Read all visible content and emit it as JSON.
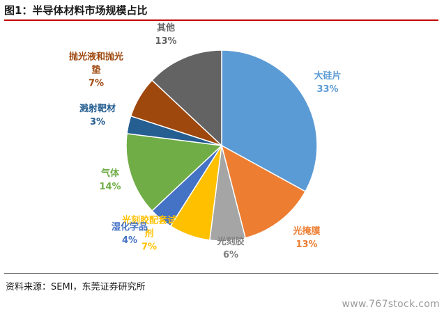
{
  "header": {
    "title": "图1：半导体材料市场规模占比"
  },
  "footer": {
    "source": "资料来源：SEMI，东莞证券研究所"
  },
  "watermark": "www.767stock.com",
  "chart_data": {
    "type": "pie",
    "title": "",
    "slices": [
      {
        "name": "大硅片",
        "label_lines": [
          "大硅片"
        ],
        "percent_label": "33%",
        "value": 33,
        "color": "#5b9bd5"
      },
      {
        "name": "光掩膜",
        "label_lines": [
          "光掩膜"
        ],
        "percent_label": "13%",
        "value": 13,
        "color": "#ed7d31"
      },
      {
        "name": "光刻胶",
        "label_lines": [
          "光刻胶"
        ],
        "percent_label": "6%",
        "value": 6,
        "color": "#a5a5a5"
      },
      {
        "name": "光刻胶配套试剂",
        "label_lines": [
          "光刻胶配套试",
          "剂"
        ],
        "percent_label": "7%",
        "value": 7,
        "color": "#ffc000"
      },
      {
        "name": "湿化学品",
        "label_lines": [
          "湿化学品"
        ],
        "percent_label": "4%",
        "value": 4,
        "color": "#4472c4"
      },
      {
        "name": "气体",
        "label_lines": [
          "气体"
        ],
        "percent_label": "14%",
        "value": 14,
        "color": "#70ad47"
      },
      {
        "name": "溅射靶材",
        "label_lines": [
          "溅射靶材"
        ],
        "percent_label": "3%",
        "value": 3,
        "color": "#255e91"
      },
      {
        "name": "抛光液和抛光垫",
        "label_lines": [
          "抛光液和抛光",
          "垫"
        ],
        "percent_label": "7%",
        "value": 7,
        "color": "#9e480e"
      },
      {
        "name": "其他",
        "label_lines": [
          "其他"
        ],
        "percent_label": "13%",
        "value": 13,
        "color": "#636363"
      }
    ],
    "legend": "none"
  }
}
